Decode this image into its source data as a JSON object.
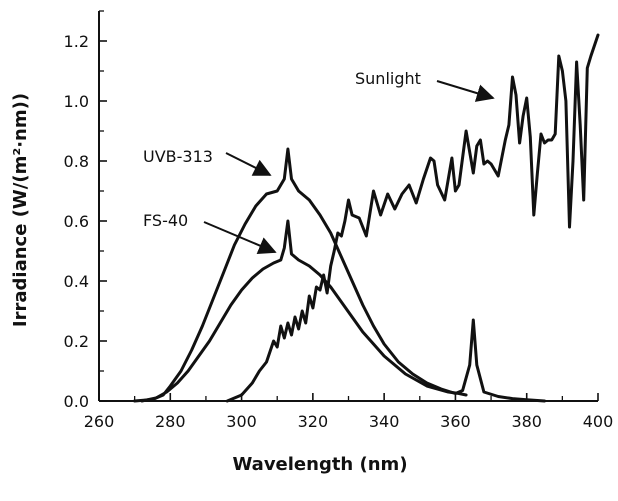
{
  "chart_data": {
    "type": "line",
    "title": "",
    "xlabel": "Wavelength (nm)",
    "ylabel": "Irradiance (W/(m²·nm))",
    "xlim": [
      260,
      400
    ],
    "ylim": [
      0.0,
      1.3
    ],
    "x_ticks": [
      260,
      280,
      300,
      320,
      340,
      360,
      380,
      400
    ],
    "y_ticks": [
      0.0,
      0.2,
      0.4,
      0.6,
      0.8,
      1.0,
      1.2
    ],
    "x_tick_labels": [
      "260",
      "280",
      "300",
      "320",
      "340",
      "360",
      "380",
      "400"
    ],
    "y_tick_labels": [
      "0.0",
      "0.2",
      "0.4",
      "0.6",
      "0.8",
      "1.0",
      "1.2"
    ],
    "grid": false,
    "legend": "none",
    "series": [
      {
        "name": "UVB-313",
        "x": [
          270,
          275,
          278,
          280,
          283,
          286,
          289,
          292,
          295,
          298,
          301,
          304,
          307,
          310,
          312,
          313,
          314,
          316,
          319,
          322,
          325,
          328,
          331,
          334,
          337,
          340,
          344,
          348,
          352,
          356,
          360,
          362,
          364,
          365,
          366,
          368,
          372,
          376,
          380,
          384,
          385
        ],
        "y": [
          0.0,
          0.005,
          0.02,
          0.05,
          0.1,
          0.17,
          0.25,
          0.34,
          0.43,
          0.52,
          0.59,
          0.65,
          0.69,
          0.7,
          0.74,
          0.84,
          0.74,
          0.7,
          0.67,
          0.62,
          0.56,
          0.48,
          0.4,
          0.32,
          0.25,
          0.19,
          0.13,
          0.09,
          0.06,
          0.04,
          0.025,
          0.035,
          0.12,
          0.27,
          0.12,
          0.03,
          0.015,
          0.008,
          0.004,
          0.001,
          0.0
        ]
      },
      {
        "name": "FS-40",
        "x": [
          272,
          276,
          279,
          282,
          285,
          288,
          291,
          294,
          297,
          300,
          303,
          306,
          309,
          311,
          312,
          313,
          314,
          316,
          319,
          322,
          325,
          328,
          331,
          334,
          337,
          340,
          343,
          346,
          349,
          352,
          355,
          358,
          361,
          363
        ],
        "y": [
          0.0,
          0.01,
          0.03,
          0.06,
          0.1,
          0.15,
          0.2,
          0.26,
          0.32,
          0.37,
          0.41,
          0.44,
          0.46,
          0.47,
          0.51,
          0.6,
          0.49,
          0.47,
          0.45,
          0.42,
          0.38,
          0.33,
          0.28,
          0.23,
          0.19,
          0.15,
          0.12,
          0.09,
          0.07,
          0.05,
          0.04,
          0.03,
          0.025,
          0.02
        ]
      },
      {
        "name": "Sunlight",
        "x": [
          296,
          300,
          303,
          305,
          307,
          309,
          310,
          311,
          312,
          313,
          314,
          315,
          316,
          317,
          318,
          319,
          320,
          321,
          322,
          323,
          324,
          325,
          326,
          327,
          328,
          329,
          330,
          331,
          333,
          335,
          337,
          339,
          341,
          343,
          345,
          347,
          349,
          351,
          353,
          354,
          355,
          357,
          359,
          360,
          361,
          363,
          365,
          366,
          367,
          368,
          369,
          370,
          372,
          374,
          375,
          376,
          377,
          378,
          379,
          380,
          381,
          382,
          383,
          384,
          385,
          386,
          387,
          388,
          389,
          390,
          391,
          392,
          393,
          394,
          395,
          396,
          397,
          398,
          400
        ],
        "y": [
          0.0,
          0.02,
          0.06,
          0.1,
          0.13,
          0.2,
          0.18,
          0.25,
          0.21,
          0.26,
          0.22,
          0.28,
          0.24,
          0.3,
          0.26,
          0.35,
          0.31,
          0.38,
          0.37,
          0.42,
          0.36,
          0.45,
          0.5,
          0.56,
          0.55,
          0.6,
          0.67,
          0.62,
          0.61,
          0.55,
          0.7,
          0.62,
          0.69,
          0.64,
          0.69,
          0.72,
          0.66,
          0.74,
          0.81,
          0.8,
          0.72,
          0.67,
          0.81,
          0.7,
          0.72,
          0.9,
          0.76,
          0.85,
          0.87,
          0.79,
          0.8,
          0.79,
          0.75,
          0.87,
          0.92,
          1.08,
          1.02,
          0.86,
          0.95,
          1.01,
          0.88,
          0.62,
          0.76,
          0.89,
          0.86,
          0.87,
          0.87,
          0.89,
          1.15,
          1.1,
          1.0,
          0.58,
          0.8,
          1.13,
          0.92,
          0.67,
          1.11,
          1.15,
          1.22
        ]
      }
    ],
    "annotations": [
      {
        "text": "UVB-313",
        "series": "UVB-313"
      },
      {
        "text": "FS-40",
        "series": "FS-40"
      },
      {
        "text": "Sunlight",
        "series": "Sunlight"
      }
    ],
    "colors": {
      "line": "#111111",
      "background": "#ffffff"
    }
  }
}
